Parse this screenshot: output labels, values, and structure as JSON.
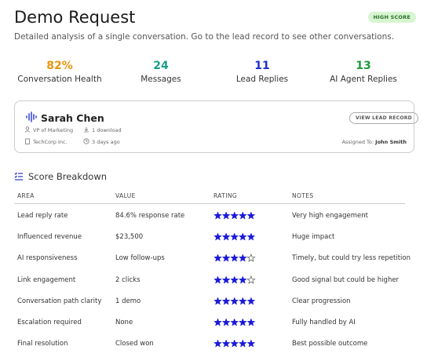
{
  "header": {
    "title": "Demo Request",
    "badge": "HIGH SCORE",
    "subtitle": "Detailed analysis of a single conversation. Go to the lead record to see other conversations."
  },
  "metrics": [
    {
      "value": "82%",
      "label": "Conversation Health",
      "color": "#e8960c"
    },
    {
      "value": "24",
      "label": "Messages",
      "color": "#1a9e8a"
    },
    {
      "value": "11",
      "label": "Lead Replies",
      "color": "#1c2fd1"
    },
    {
      "value": "13",
      "label": "AI Agent Replies",
      "color": "#1f9a3e"
    }
  ],
  "lead": {
    "name": "Sarah Chen",
    "button": "VIEW LEAD RECORD",
    "role": "VP of Marketing",
    "downloads": "1 download",
    "company": "TechCorp Inc.",
    "time": "3 days ago",
    "assigned_label": "Assigned To:",
    "assigned_name": "John Smith"
  },
  "table": {
    "title": "Score Breakdown",
    "columns": [
      "AREA",
      "VALUE",
      "RATING",
      "NOTES"
    ],
    "rating_scale": 5,
    "star_color": "#1a1ad8",
    "rows": [
      [
        "Lead reply rate",
        "84.6% response rate",
        5,
        "Very high engagement"
      ],
      [
        "Influenced revenue",
        "$23,500",
        5,
        "Huge impact"
      ],
      [
        "AI responsiveness",
        "Low follow-ups",
        4,
        "Timely, but could try less repetition"
      ],
      [
        "Link engagement",
        "2 clicks",
        4,
        "Good signal but could be higher"
      ],
      [
        "Conversation path clarity",
        "1 demo",
        5,
        "Clear progression"
      ],
      [
        "Escalation required",
        "None",
        5,
        "Fully handled by AI"
      ],
      [
        "Final resolution",
        "Closed won",
        5,
        "Best possible outcome"
      ]
    ]
  }
}
